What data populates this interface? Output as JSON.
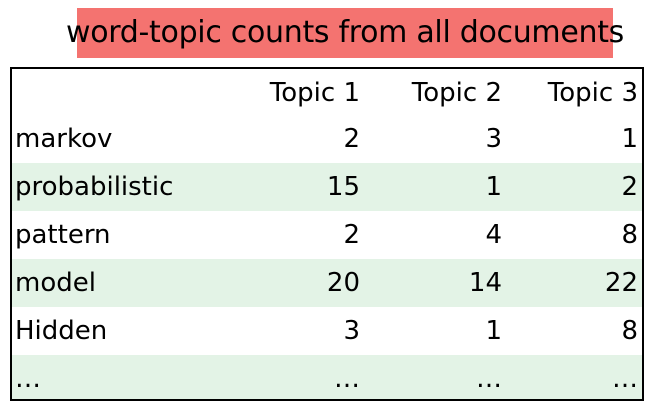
{
  "title": "word-topic counts from all documents",
  "colors": {
    "title_background": "#f47370",
    "row_shading": "#e3f3e6"
  },
  "table": {
    "headers": [
      "",
      "Topic 1",
      "Topic 2",
      "Topic 3"
    ],
    "rows": [
      {
        "word": "markov",
        "values": [
          "2",
          "3",
          "1"
        ]
      },
      {
        "word": "probabilistic",
        "values": [
          "15",
          "1",
          "2"
        ]
      },
      {
        "word": "pattern",
        "values": [
          "2",
          "4",
          "8"
        ]
      },
      {
        "word": "model",
        "values": [
          "20",
          "14",
          "22"
        ]
      },
      {
        "word": "Hidden",
        "values": [
          "3",
          "1",
          "8"
        ]
      },
      {
        "word": "…",
        "values": [
          "…",
          "…",
          "…"
        ]
      }
    ]
  }
}
